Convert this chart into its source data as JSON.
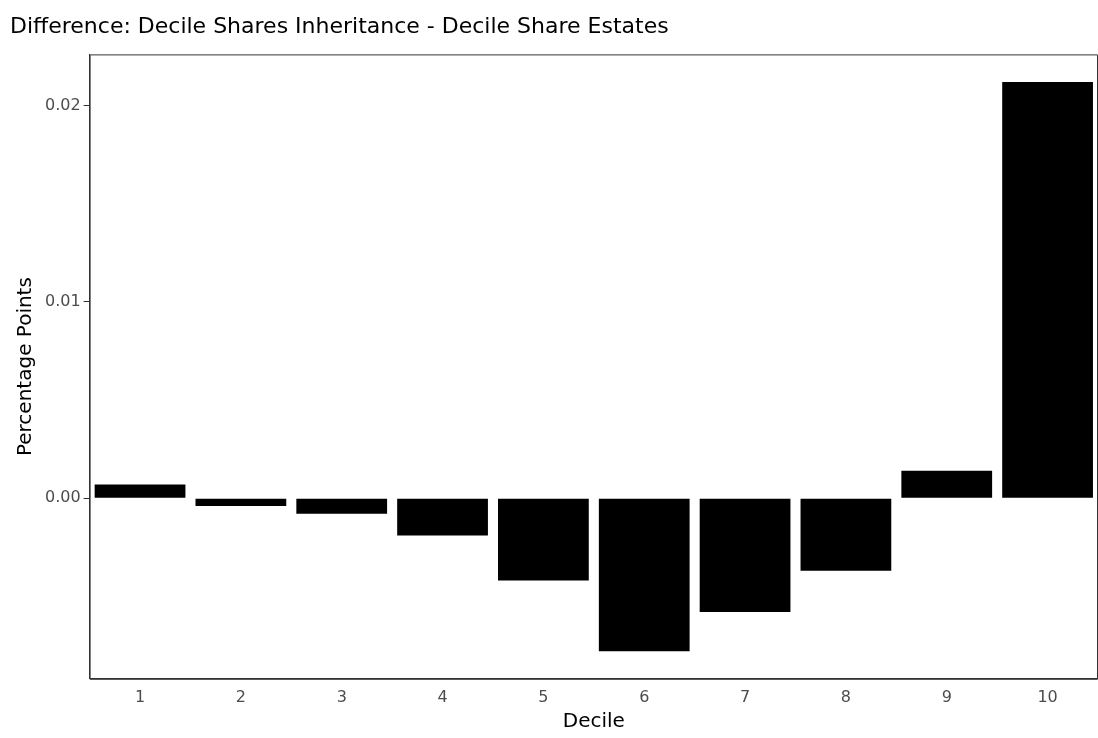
{
  "chart_data": {
    "type": "bar",
    "title": "Difference: Decile Shares Inheritance - Decile Share Estates",
    "xlabel": "Decile",
    "ylabel": "Percentage Points",
    "categories": [
      "1",
      "2",
      "3",
      "4",
      "5",
      "6",
      "7",
      "8",
      "9",
      "10"
    ],
    "values": [
      0.0007,
      -0.0004,
      -0.0008,
      -0.0019,
      -0.0042,
      -0.0078,
      -0.0058,
      -0.0037,
      0.0014,
      0.0212
    ],
    "color": "#000000",
    "ylim": [
      -0.0092,
      0.0226
    ],
    "yticks": [
      {
        "value": 0,
        "label": "0.00"
      },
      {
        "value": 0.01,
        "label": "0.01"
      },
      {
        "value": 0.02,
        "label": "0.02"
      }
    ],
    "grid": false,
    "legend": false
  }
}
